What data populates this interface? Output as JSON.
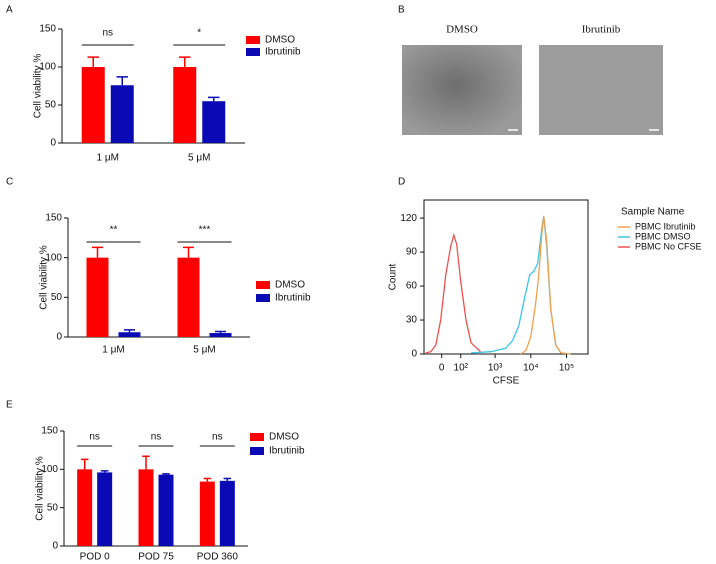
{
  "chart_data": [
    {
      "type": "bar",
      "label": "A",
      "ylabel": "Cell viability %",
      "categories": [
        "1 μM",
        "5 μM"
      ],
      "series": [
        {
          "name": "DMSO",
          "color": "#ff0000",
          "values": [
            100,
            100
          ],
          "errors": [
            13,
            13
          ]
        },
        {
          "name": "Ibrutinib",
          "color": "#0a0ab4",
          "values": [
            76,
            55
          ],
          "errors": [
            11,
            5
          ]
        }
      ],
      "annotations": [
        "ns",
        "*"
      ],
      "ylim": [
        0,
        150
      ],
      "yticks": [
        0,
        50,
        100,
        150
      ]
    },
    {
      "type": "image",
      "label": "B",
      "captions": [
        "DMSO",
        "Ibrutinib"
      ]
    },
    {
      "type": "bar",
      "label": "C",
      "ylabel": "Cell viability %",
      "categories": [
        "1 μM",
        "5 μM"
      ],
      "series": [
        {
          "name": "DMSO",
          "color": "#ff0000",
          "values": [
            100,
            100
          ],
          "errors": [
            13,
            13
          ]
        },
        {
          "name": "Ibrutinib",
          "color": "#0a0ab4",
          "values": [
            6,
            5
          ],
          "errors": [
            3,
            2
          ]
        }
      ],
      "annotations": [
        "**",
        "***"
      ],
      "ylim": [
        0,
        150
      ],
      "yticks": [
        0,
        50,
        100,
        150
      ]
    },
    {
      "type": "line",
      "label": "D",
      "xlabel": "CFSE",
      "ylabel": "Count",
      "legend_title": "Sample Name",
      "xscale": "biex",
      "series": [
        {
          "name": "PBMC Ibrutinib",
          "color": "#f4a04c",
          "x": [
            5240,
            7230,
            9990,
            13700,
            16760,
            20200,
            23000,
            27900,
            36200,
            49800,
            69100,
            131000
          ],
          "values": [
            0,
            3,
            15,
            45,
            70,
            105,
            122,
            100,
            40,
            8,
            1,
            0
          ]
        },
        {
          "name": "PBMC DMSO",
          "color": "#3cc6e6",
          "x": [
            207,
            755,
            1990,
            3120,
            4610,
            6730,
            9360,
            12150,
            15600,
            20200,
            23000,
            27900,
            36200,
            49800,
            69100,
            131000
          ],
          "values": [
            1,
            2,
            5,
            12,
            25,
            50,
            70,
            73,
            80,
            110,
            122,
            95,
            40,
            8,
            1,
            0
          ]
        },
        {
          "name": "PBMC No CFSE",
          "color": "#f05050",
          "x": [
            -78,
            -49,
            -25,
            -4,
            17,
            39,
            55,
            72,
            99,
            147,
            207,
            388
          ],
          "values": [
            1,
            2,
            8,
            30,
            70,
            95,
            105,
            97,
            65,
            30,
            10,
            2
          ]
        }
      ],
      "xlim": [
        -90,
        400000
      ],
      "xticks": [
        0,
        {
          "value": 100,
          "label": "10²"
        },
        {
          "value": 1000,
          "label": "10³"
        },
        {
          "value": 10000,
          "label": "10⁴"
        },
        {
          "value": 100000,
          "label": "10⁵"
        }
      ],
      "ylim": [
        0,
        136
      ],
      "yticks": [
        0,
        30,
        60,
        90,
        120
      ]
    },
    {
      "type": "bar",
      "label": "E",
      "ylabel": "Cell viability %",
      "categories": [
        "POD 0",
        "POD 75",
        "POD 360"
      ],
      "series": [
        {
          "name": "DMSO",
          "color": "#ff0000",
          "values": [
            100,
            100,
            84
          ],
          "errors": [
            13,
            17,
            4
          ]
        },
        {
          "name": "Ibrutinib",
          "color": "#0a0ab4",
          "values": [
            96,
            93,
            85
          ],
          "errors": [
            2,
            1,
            3
          ]
        }
      ],
      "annotations": [
        "ns",
        "ns",
        "ns"
      ],
      "ylim": [
        0,
        150
      ],
      "yticks": [
        0,
        50,
        100,
        150
      ]
    }
  ]
}
